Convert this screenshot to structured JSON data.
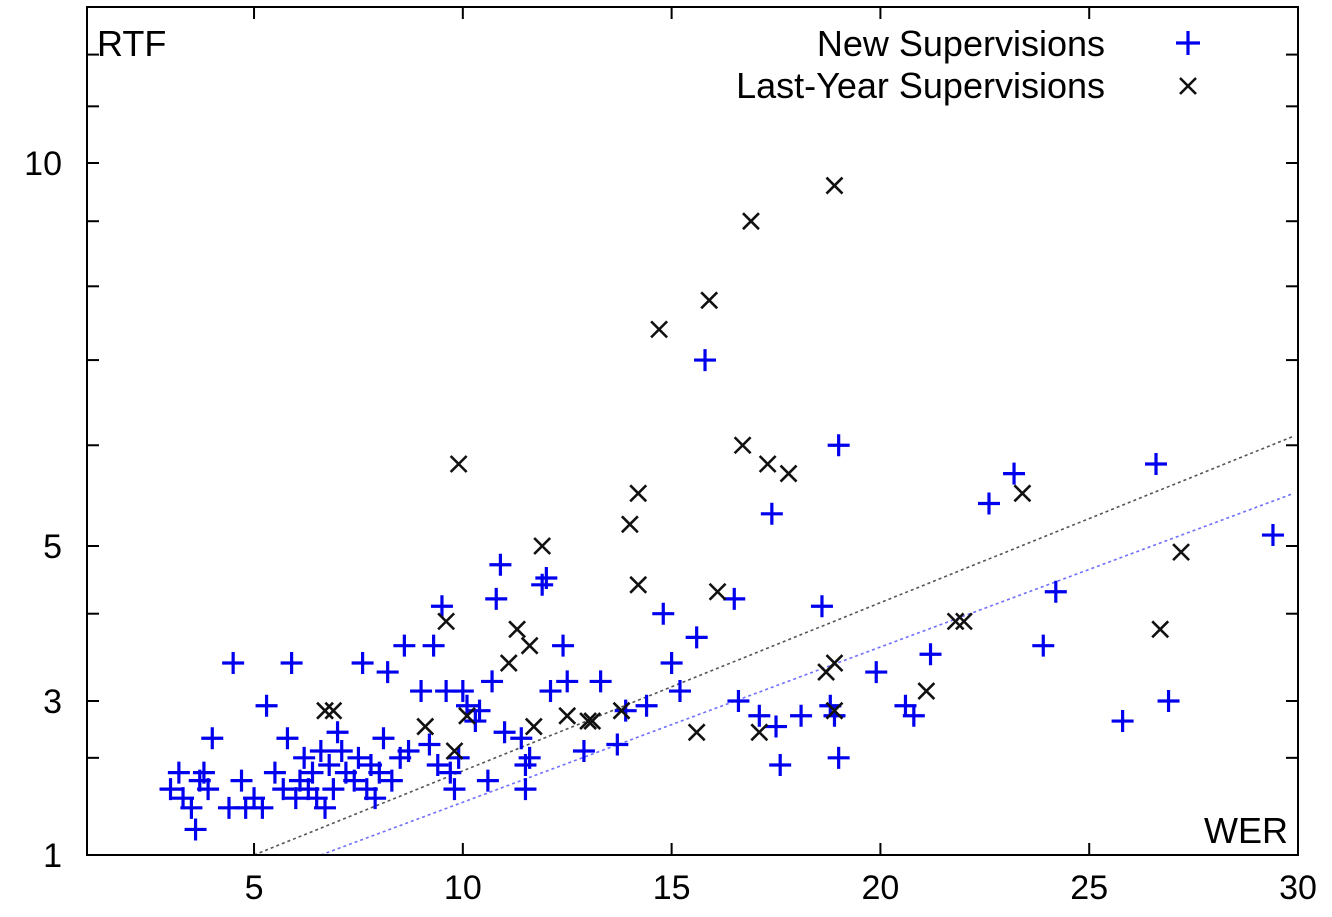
{
  "chart_data": {
    "type": "scatter",
    "title": "",
    "xlabel": "WER",
    "ylabel": "RTF",
    "xlim": [
      1,
      30
    ],
    "ylim": [
      1,
      13
    ],
    "y_scale": "piecewise-log",
    "grid": false,
    "legend_position": "top-right",
    "x_ticks": [
      5,
      10,
      15,
      20,
      25,
      30
    ],
    "y_ticks": [
      1,
      3,
      5,
      10
    ],
    "colors": {
      "new": "#0000ee",
      "last": "#111111",
      "fit_new": "#6f6fff",
      "fit_last": "#555555"
    },
    "series": [
      {
        "name": "New Supervisions",
        "marker": "plus",
        "points": [
          [
            3.0,
            1.6
          ],
          [
            3.2,
            1.8
          ],
          [
            3.3,
            1.5
          ],
          [
            3.5,
            1.4
          ],
          [
            3.6,
            1.2
          ],
          [
            3.7,
            1.7
          ],
          [
            3.8,
            1.8
          ],
          [
            3.9,
            1.6
          ],
          [
            4.0,
            2.3
          ],
          [
            4.4,
            1.4
          ],
          [
            4.5,
            3.4
          ],
          [
            4.7,
            1.7
          ],
          [
            4.8,
            1.4
          ],
          [
            5.0,
            1.5
          ],
          [
            5.2,
            1.4
          ],
          [
            5.3,
            2.9
          ],
          [
            5.5,
            1.8
          ],
          [
            5.7,
            1.6
          ],
          [
            5.8,
            2.3
          ],
          [
            5.9,
            3.4
          ],
          [
            6.0,
            1.5
          ],
          [
            6.1,
            1.7
          ],
          [
            6.2,
            2.0
          ],
          [
            6.3,
            1.6
          ],
          [
            6.4,
            1.8
          ],
          [
            6.5,
            1.5
          ],
          [
            6.6,
            2.1
          ],
          [
            6.7,
            1.4
          ],
          [
            6.8,
            1.9
          ],
          [
            6.9,
            1.6
          ],
          [
            7.0,
            2.4
          ],
          [
            7.1,
            2.1
          ],
          [
            7.2,
            1.8
          ],
          [
            7.4,
            1.7
          ],
          [
            7.5,
            2.0
          ],
          [
            7.6,
            3.4
          ],
          [
            7.7,
            1.6
          ],
          [
            7.8,
            1.9
          ],
          [
            7.9,
            1.5
          ],
          [
            8.0,
            1.8
          ],
          [
            8.1,
            2.3
          ],
          [
            8.2,
            3.3
          ],
          [
            8.3,
            1.7
          ],
          [
            8.5,
            2.0
          ],
          [
            8.6,
            3.6
          ],
          [
            8.7,
            2.1
          ],
          [
            9.0,
            3.1
          ],
          [
            9.2,
            2.2
          ],
          [
            9.3,
            3.6
          ],
          [
            9.4,
            1.9
          ],
          [
            9.5,
            4.1
          ],
          [
            9.6,
            3.1
          ],
          [
            9.7,
            1.8
          ],
          [
            9.8,
            1.6
          ],
          [
            9.9,
            2.0
          ],
          [
            10.0,
            3.1
          ],
          [
            10.1,
            2.9
          ],
          [
            10.3,
            2.6
          ],
          [
            10.4,
            2.8
          ],
          [
            10.6,
            1.7
          ],
          [
            10.7,
            3.2
          ],
          [
            10.8,
            4.2
          ],
          [
            10.9,
            4.7
          ],
          [
            11.0,
            2.4
          ],
          [
            11.4,
            2.3
          ],
          [
            11.5,
            1.6
          ],
          [
            11.5,
            1.9
          ],
          [
            11.6,
            2.0
          ],
          [
            11.9,
            4.4
          ],
          [
            12.0,
            4.5
          ],
          [
            12.1,
            3.1
          ],
          [
            12.4,
            3.6
          ],
          [
            12.5,
            3.2
          ],
          [
            12.9,
            2.1
          ],
          [
            13.3,
            3.2
          ],
          [
            13.7,
            2.2
          ],
          [
            13.9,
            2.8
          ],
          [
            14.4,
            2.9
          ],
          [
            14.8,
            4.0
          ],
          [
            15.0,
            3.4
          ],
          [
            15.2,
            3.1
          ],
          [
            15.6,
            3.7
          ],
          [
            15.8,
            7.0
          ],
          [
            16.5,
            4.2
          ],
          [
            16.6,
            3.0
          ],
          [
            17.1,
            2.7
          ],
          [
            17.4,
            5.3
          ],
          [
            17.5,
            2.5
          ],
          [
            17.6,
            1.9
          ],
          [
            18.1,
            2.7
          ],
          [
            18.6,
            4.1
          ],
          [
            18.8,
            2.9
          ],
          [
            18.9,
            2.7
          ],
          [
            19.0,
            6.0
          ],
          [
            19.0,
            2.0
          ],
          [
            19.9,
            3.3
          ],
          [
            20.6,
            2.9
          ],
          [
            20.8,
            2.7
          ],
          [
            21.2,
            3.5
          ],
          [
            22.6,
            5.4
          ],
          [
            23.2,
            5.7
          ],
          [
            23.9,
            3.6
          ],
          [
            24.2,
            4.3
          ],
          [
            25.8,
            2.6
          ],
          [
            26.6,
            5.8
          ],
          [
            26.9,
            3.0
          ],
          [
            29.4,
            5.1
          ]
        ]
      },
      {
        "name": "Last-Year Supervisions",
        "marker": "cross",
        "points": [
          [
            6.7,
            2.8
          ],
          [
            6.9,
            2.8
          ],
          [
            9.1,
            2.5
          ],
          [
            9.6,
            3.9
          ],
          [
            9.8,
            2.1
          ],
          [
            9.9,
            5.8
          ],
          [
            10.1,
            2.7
          ],
          [
            11.1,
            3.4
          ],
          [
            11.3,
            3.8
          ],
          [
            11.6,
            3.6
          ],
          [
            11.7,
            2.5
          ],
          [
            11.9,
            5.0
          ],
          [
            12.5,
            2.7
          ],
          [
            13.0,
            2.6
          ],
          [
            13.1,
            2.6
          ],
          [
            13.8,
            2.8
          ],
          [
            14.0,
            5.2
          ],
          [
            14.2,
            4.4
          ],
          [
            14.2,
            5.5
          ],
          [
            14.7,
            7.4
          ],
          [
            15.6,
            2.4
          ],
          [
            15.9,
            7.8
          ],
          [
            16.1,
            4.3
          ],
          [
            16.7,
            6.0
          ],
          [
            16.9,
            9.0
          ],
          [
            17.1,
            2.4
          ],
          [
            17.3,
            5.8
          ],
          [
            17.8,
            5.7
          ],
          [
            18.7,
            3.3
          ],
          [
            18.9,
            9.6
          ],
          [
            18.9,
            3.4
          ],
          [
            18.9,
            2.8
          ],
          [
            21.1,
            3.1
          ],
          [
            21.8,
            3.9
          ],
          [
            22.0,
            3.9
          ],
          [
            23.4,
            5.5
          ],
          [
            26.7,
            3.8
          ],
          [
            27.2,
            4.9
          ]
        ]
      }
    ],
    "fit_lines": [
      {
        "series": "New Supervisions",
        "style": "dotted",
        "from": [
          6.6,
          1.0
        ],
        "to": [
          29.9,
          5.5
        ]
      },
      {
        "series": "Last-Year Supervisions",
        "style": "dotted",
        "from": [
          5.0,
          1.0
        ],
        "to": [
          29.9,
          6.1
        ]
      }
    ]
  }
}
